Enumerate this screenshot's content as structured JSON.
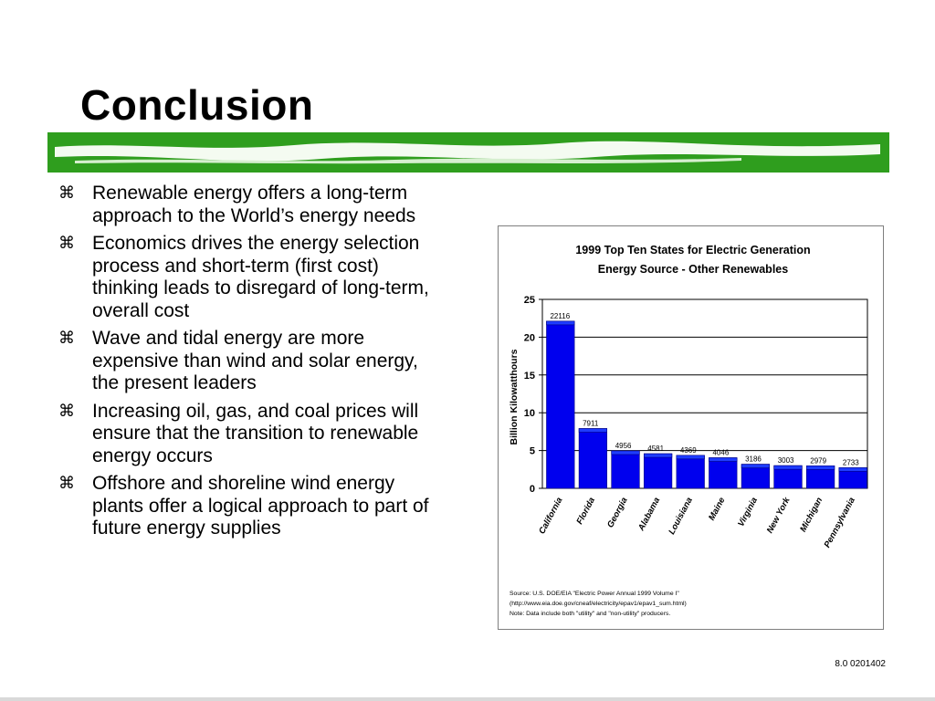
{
  "slide": {
    "title": "Conclusion",
    "bullet_mark": "⌘",
    "bullets": [
      "Renewable energy offers a long-term approach to the World’s energy needs",
      "Economics drives the energy selection process and short-term (first cost) thinking leads to disregard of long-term, overall cost",
      "Wave and tidal energy are more expensive than wind and solar energy, the present leaders",
      "Increasing oil, gas, and coal prices will ensure that the transition to renewable energy occurs",
      "Offshore and shoreline wind energy plants offer a logical approach to part of future energy supplies"
    ],
    "footer": "8.0 0201402",
    "accent_green": "#2f9e1e"
  },
  "chart_data": {
    "type": "bar",
    "title": "1999 Top Ten States for Electric Generation",
    "subtitle": "Energy Source - Other Renewables",
    "ylabel": "Billion Kilowatthours",
    "xlabel": "",
    "categories": [
      "California",
      "Florida",
      "Georgia",
      "Alabama",
      "Louisiana",
      "Maine",
      "Virginia",
      "New York",
      "Michigan",
      "Pennsylvania"
    ],
    "values": [
      22.116,
      7.911,
      4.956,
      4.581,
      4.369,
      4.046,
      3.186,
      3.003,
      2.979,
      2.733
    ],
    "data_labels": [
      "22116",
      "7911",
      "4956",
      "4581",
      "4369",
      "4046",
      "3186",
      "3003",
      "2979",
      "2733"
    ],
    "ylim": [
      0,
      25
    ],
    "yticks": [
      0,
      5,
      10,
      15,
      20,
      25
    ],
    "grid": true,
    "bar_color": "#0000ee",
    "bar_top_color": "#1e3cff",
    "source_lines": [
      "Source: U.S. DOE/EIA \"Electric Power Annual 1999 Volume I\"",
      "(http://www.eia.doe.gov/cneaf/electricity/epav1/epav1_sum.html)",
      "Note:  Data include both \"utility\" and \"non-utility\" producers."
    ]
  }
}
